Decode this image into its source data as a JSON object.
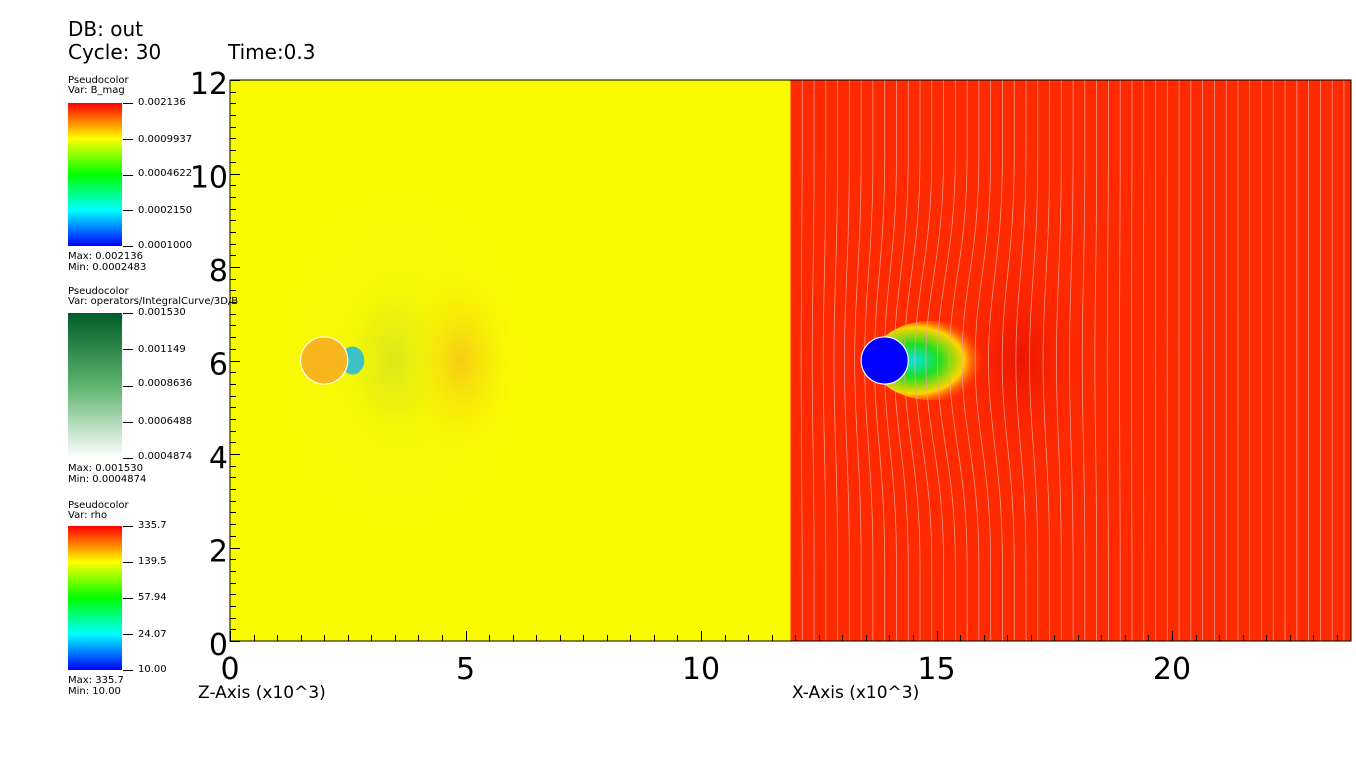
{
  "header": {
    "db_label": "DB: out",
    "cycle_label": "Cycle: 30",
    "time_label": "Time:0.3"
  },
  "legends": [
    {
      "plot_label": "Pseudocolor",
      "var_label": "Var: B_mag",
      "colormap": "hot",
      "ticks": [
        "0.002136",
        "0.0009937",
        "0.0004622",
        "0.0002150",
        "0.0001000"
      ],
      "max_label": "Max:  0.002136",
      "min_label": "Min:  0.0002483"
    },
    {
      "plot_label": "Pseudocolor",
      "var_label": "Var: operators/IntegralCurve/3D/B",
      "colormap": "greens",
      "ticks": [
        "0.001530",
        "0.001149",
        "0.0008636",
        "0.0006488",
        "0.0004874"
      ],
      "max_label": "Max:  0.001530",
      "min_label": "Min:  0.0004874"
    },
    {
      "plot_label": "Pseudocolor",
      "var_label": "Var: rho",
      "colormap": "hot",
      "ticks": [
        "335.7",
        "139.5",
        "57.94",
        "24.07",
        "10.00"
      ],
      "max_label": "Max:  335.7",
      "min_label": "Min:  10.00"
    }
  ],
  "chart_data": {
    "type": "heatmap",
    "x_axis": {
      "ticks": [
        0,
        5,
        10,
        15,
        20
      ],
      "range": [
        0,
        23.8
      ],
      "left_label": "Z-Axis (x10^3)",
      "right_label": "X-Axis (x10^3)"
    },
    "y_axis": {
      "ticks": [
        0,
        2,
        4,
        6,
        8,
        10,
        12
      ],
      "range": [
        0,
        12
      ]
    },
    "panels": [
      {
        "name": "left",
        "x_range": [
          0,
          11.9
        ],
        "background": "#fbfb00",
        "obstacle": {
          "cx": 2.0,
          "cy": 6.0,
          "r": 0.5,
          "fill": "#f7b61d"
        }
      },
      {
        "name": "right",
        "x_range": [
          11.9,
          23.8
        ],
        "background": "#ff2a00",
        "obstacle": {
          "cx": 13.9,
          "cy": 6.0,
          "r": 0.5,
          "fill": "#0000ff"
        },
        "streamline_spacing": 0.25
      }
    ]
  }
}
